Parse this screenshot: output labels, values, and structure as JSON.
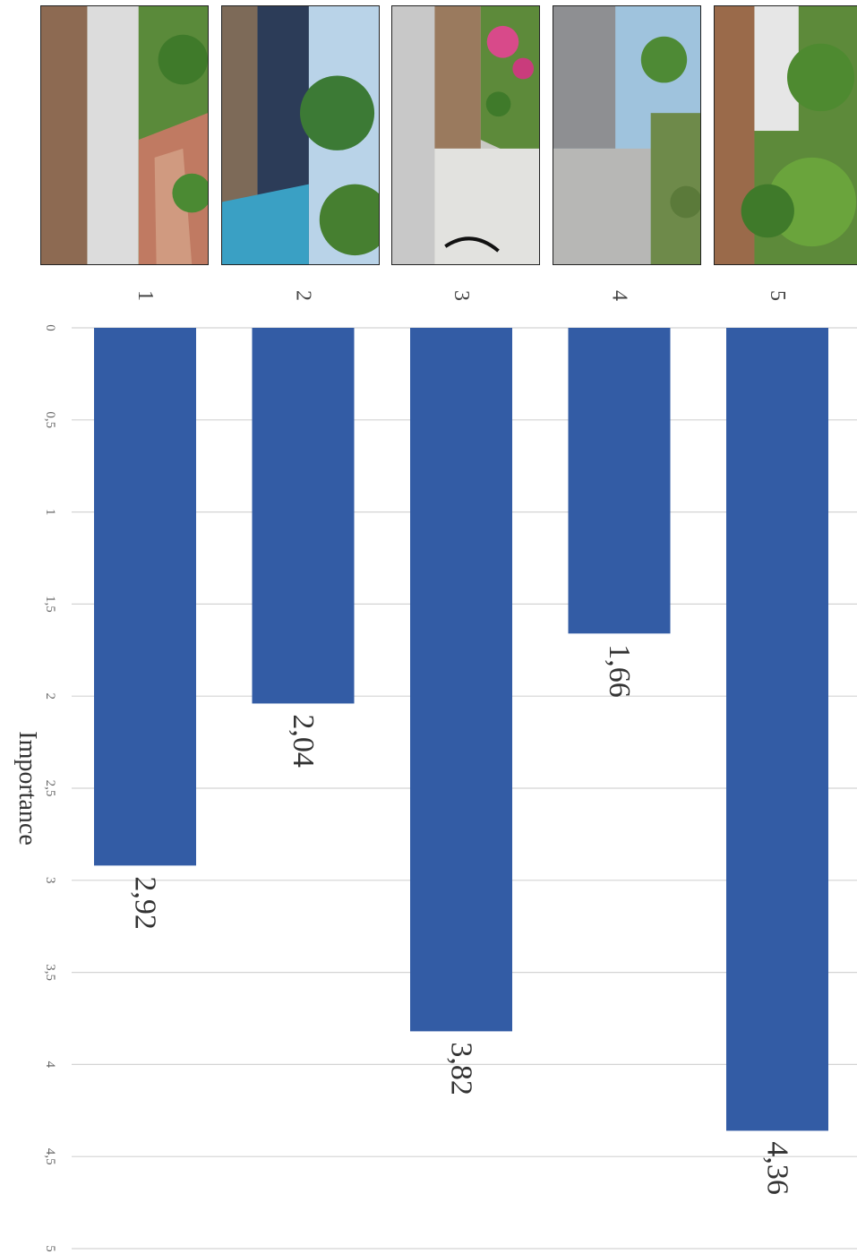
{
  "chart_data": {
    "type": "bar",
    "orientation": "horizontal",
    "text_rotation": "rotated 90 degrees clockwise",
    "categories": [
      "1",
      "2",
      "3",
      "4",
      "5"
    ],
    "values": [
      2.92,
      2.04,
      3.82,
      1.66,
      4.36
    ],
    "value_labels": [
      "2,92",
      "2,04",
      "3,82",
      "1,66",
      "4,36"
    ],
    "xlabel": "Importance",
    "xlim": [
      0,
      5
    ],
    "ticks": [
      0,
      0.5,
      1,
      1.5,
      2,
      2.5,
      3,
      3.5,
      4,
      4.5,
      5
    ],
    "tick_labels": [
      "0",
      "0,5",
      "1",
      "1,5",
      "2",
      "2,5",
      "3",
      "3,5",
      "4",
      "4,5",
      "5"
    ],
    "grid": true,
    "bar_color": "#335ca5",
    "grid_color": "#d4d4d4",
    "category_images": [
      "urban-corridor-photo-1",
      "urban-corridor-photo-2",
      "urban-corridor-photo-3",
      "urban-corridor-photo-4",
      "urban-corridor-photo-5"
    ]
  }
}
